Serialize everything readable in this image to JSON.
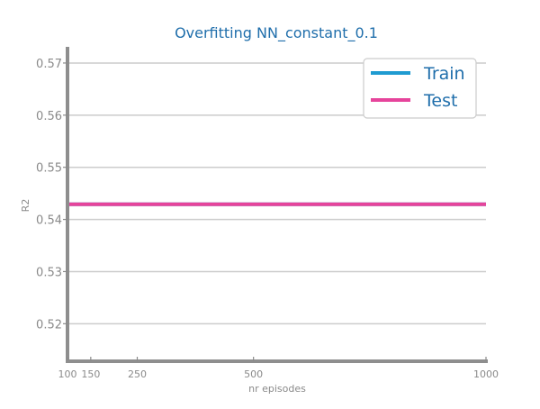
{
  "chart_data": {
    "type": "line",
    "title": "Overfitting NN_constant_0.1",
    "xlabel": "nr episodes",
    "ylabel": "R2",
    "x": [
      100,
      150,
      250,
      500,
      1000
    ],
    "x_tick_labels": [
      "100",
      "150",
      "250",
      "500",
      "1000"
    ],
    "xlim": [
      100,
      1000
    ],
    "ylim": [
      0.5128,
      0.5731
    ],
    "y_ticks": [
      0.52,
      0.53,
      0.54,
      0.55,
      0.56,
      0.57
    ],
    "y_tick_labels": [
      "0.52",
      "0.53",
      "0.54",
      "0.55",
      "0.56",
      "0.57"
    ],
    "grid": "horizontal",
    "legend_position": "top-right",
    "series": [
      {
        "name": "Train",
        "color": "#1f9bd1",
        "values": [
          0.5429,
          0.5429,
          0.5429,
          0.5429,
          0.5429
        ]
      },
      {
        "name": "Test",
        "color": "#e6449b",
        "values": [
          0.5429,
          0.5429,
          0.5429,
          0.5429,
          0.5429
        ]
      }
    ]
  }
}
